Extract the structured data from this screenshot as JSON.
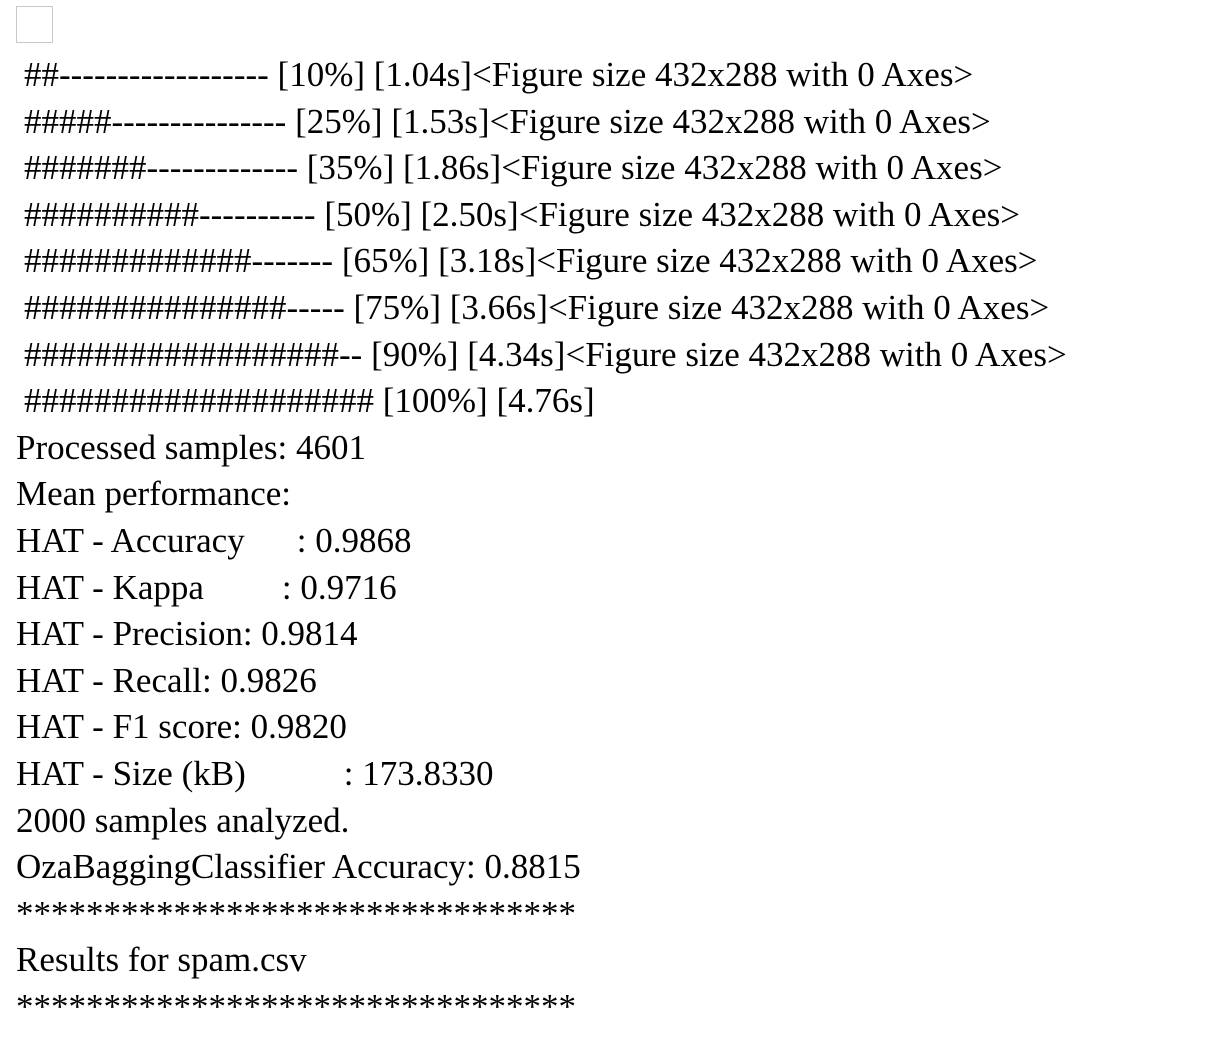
{
  "progress": [
    {
      "bar": "##------------------",
      "pct": "[10%]",
      "time": "[1.04s]",
      "figure": "<Figure size 432x288 with 0 Axes>"
    },
    {
      "bar": "#####---------------",
      "pct": "[25%]",
      "time": "[1.53s]",
      "figure": "<Figure size 432x288 with 0 Axes>"
    },
    {
      "bar": "#######-------------",
      "pct": "[35%]",
      "time": "[1.86s]",
      "figure": "<Figure size 432x288 with 0 Axes>"
    },
    {
      "bar": "##########----------",
      "pct": "[50%]",
      "time": "[2.50s]",
      "figure": "<Figure size 432x288 with 0 Axes>"
    },
    {
      "bar": "#############-------",
      "pct": "[65%]",
      "time": "[3.18s]",
      "figure": "<Figure size 432x288 with 0 Axes>"
    },
    {
      "bar": "###############-----",
      "pct": "[75%]",
      "time": "[3.66s]",
      "figure": "<Figure size 432x288 with 0 Axes>"
    },
    {
      "bar": "##################--",
      "pct": "[90%]",
      "time": "[4.34s]",
      "figure": "<Figure size 432x288 with 0 Axes>"
    },
    {
      "bar": "####################",
      "pct": "[100%]",
      "time": "[4.76s]",
      "figure": ""
    }
  ],
  "summary": {
    "processed": "Processed samples: 4601",
    "mean_header": "Mean performance:",
    "accuracy_label": "HAT - Accuracy",
    "accuracy_value": ": 0.9868",
    "kappa_label": "HAT - Kappa",
    "kappa_value": ": 0.9716",
    "precision": "HAT - Precision: 0.9814",
    "recall": "HAT - Recall: 0.9826",
    "f1": "HAT - F1 score: 0.9820",
    "size_label": "HAT - Size (kB)",
    "size_value": ": 173.8330",
    "analyzed": "2000 samples analyzed.",
    "oza": "OzaBaggingClassifier Accuracy: 0.8815",
    "stars_top": "********************************",
    "results": "Results for spam.csv",
    "stars_bottom": "********************************"
  }
}
